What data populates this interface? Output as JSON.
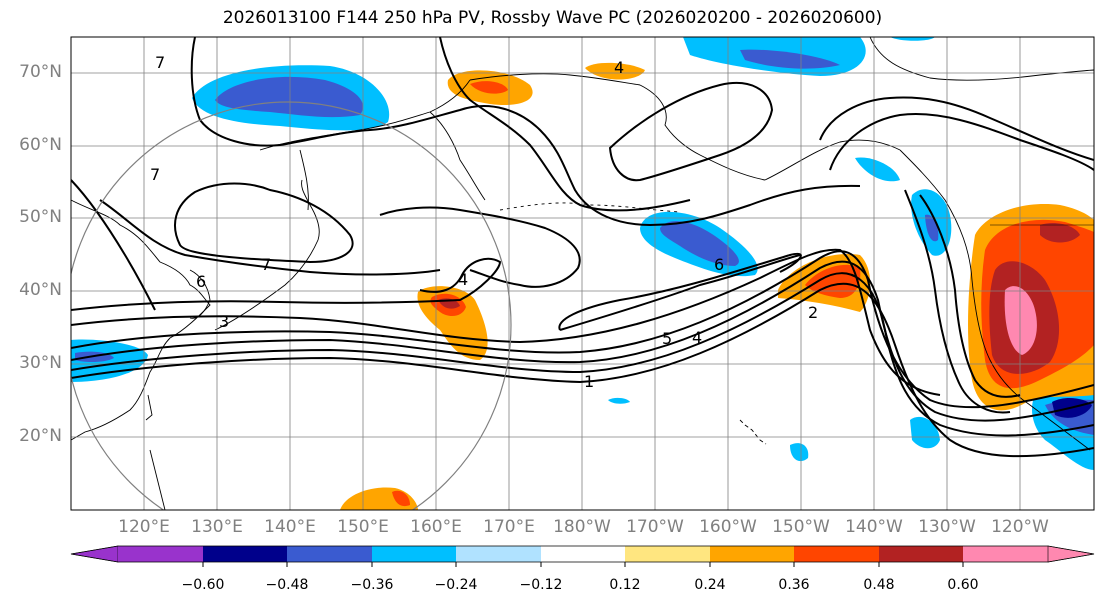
{
  "title": "2026013100 F144 250 hPa PV, Rossby Wave PC (2026020200 - 2026020600)",
  "lat_labels": [
    "70°N",
    "60°N",
    "50°N",
    "40°N",
    "30°N",
    "20°N"
  ],
  "lon_labels": [
    "120°E",
    "130°E",
    "140°E",
    "150°E",
    "160°E",
    "170°E",
    "180°W",
    "170°W",
    "160°W",
    "150°W",
    "140°W",
    "130°W",
    "120°W"
  ],
  "colorbar": {
    "ticks": [
      "−0.60",
      "−0.48",
      "−0.36",
      "−0.24",
      "−0.12",
      "0.12",
      "0.24",
      "0.36",
      "0.48",
      "0.60"
    ],
    "colors": [
      "#9933cc",
      "#00008b",
      "#3a5bd0",
      "#00bfff",
      "#b0e2ff",
      "#ffffff",
      "#ffe680",
      "#ffa500",
      "#ff4500",
      "#b22222",
      "#ff88b0"
    ]
  },
  "contour_labels": [
    "7",
    "7",
    "7",
    "6",
    "3",
    "4",
    "4",
    "6",
    "5",
    "4",
    "2",
    "1"
  ],
  "chart_data": {
    "type": "map",
    "title": "2026013100 F144 250 hPa PV, Rossby Wave PC (2026020200 - 2026020600)",
    "projection": "PlateCarree, central longitude 180",
    "extent": {
      "lon_min": 110,
      "lon_max": 250,
      "lat_min": 10,
      "lat_max": 75
    },
    "filled_field": "Rossby Wave PC",
    "contour_field": "250 hPa PV",
    "contour_levels": [
      1,
      2,
      3,
      4,
      5,
      6,
      7
    ],
    "color_levels": [
      -0.6,
      -0.48,
      -0.36,
      -0.24,
      -0.12,
      0.12,
      0.24,
      0.36,
      0.48,
      0.6
    ],
    "annotation": "circle centered near 140°E, 41°N"
  }
}
